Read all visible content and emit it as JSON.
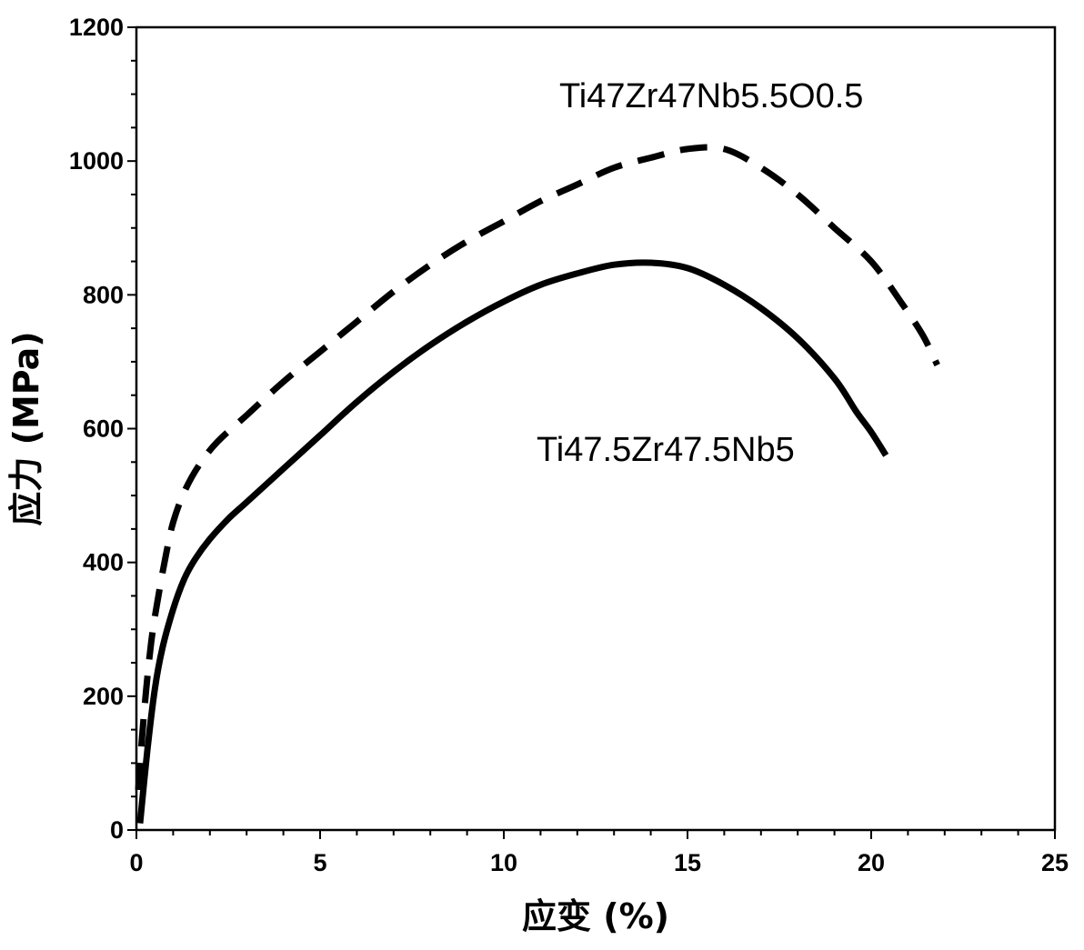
{
  "chart_data": {
    "type": "line",
    "title": "",
    "xlabel": "应变 (%)",
    "ylabel": "应力 (MPa)",
    "xlim": [
      0,
      25
    ],
    "ylim": [
      0,
      1200
    ],
    "xticks": [
      0,
      5,
      10,
      15,
      20,
      25
    ],
    "yticks": [
      0,
      200,
      400,
      600,
      800,
      1000,
      1200
    ],
    "grid": false,
    "series": [
      {
        "name": "Ti47Zr47Nb5.5O0.5",
        "style": "dashed",
        "color": "#000000",
        "x": [
          0.05,
          0.2,
          0.4,
          0.6,
          0.8,
          1.0,
          1.3,
          1.7,
          2.2,
          3.0,
          4.0,
          5.0,
          6.0,
          7.0,
          8.0,
          9.0,
          10.0,
          11.0,
          12.0,
          13.0,
          14.0,
          15.0,
          16.0,
          17.0,
          18.0,
          19.0,
          20.0,
          20.8,
          21.4,
          21.8
        ],
        "y": [
          60,
          170,
          280,
          350,
          410,
          460,
          505,
          545,
          580,
          620,
          670,
          715,
          760,
          805,
          845,
          880,
          910,
          940,
          965,
          990,
          1005,
          1018,
          1018,
          990,
          950,
          900,
          850,
          790,
          740,
          695
        ],
        "annotation": "Ti47Zr47Nb5.5O0.5"
      },
      {
        "name": "Ti47.5Zr47.5Nb5",
        "style": "solid",
        "color": "#000000",
        "x": [
          0.1,
          0.3,
          0.5,
          0.7,
          1.0,
          1.3,
          1.6,
          2.0,
          2.5,
          3.0,
          4.0,
          5.0,
          6.0,
          7.0,
          8.0,
          9.0,
          10.0,
          11.0,
          12.0,
          13.0,
          14.0,
          15.0,
          16.0,
          17.0,
          18.0,
          19.0,
          19.6,
          20.0,
          20.4
        ],
        "y": [
          10,
          120,
          210,
          270,
          330,
          375,
          405,
          435,
          465,
          490,
          540,
          590,
          640,
          685,
          725,
          760,
          790,
          815,
          832,
          845,
          848,
          840,
          815,
          780,
          735,
          675,
          625,
          595,
          560
        ],
        "annotation": "Ti47.5Zr47.5Nb5"
      }
    ]
  }
}
